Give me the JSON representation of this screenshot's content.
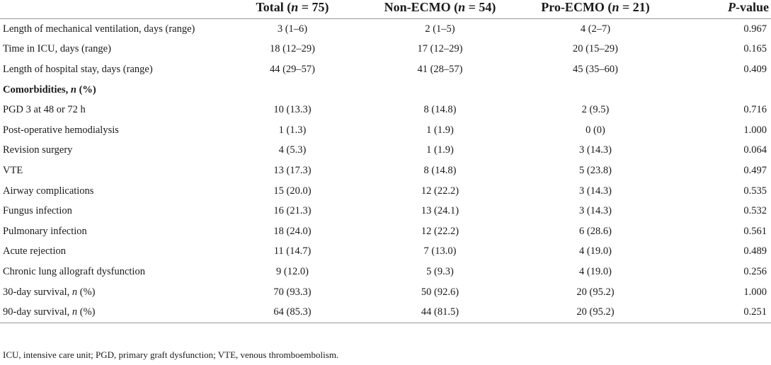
{
  "columns": {
    "total": {
      "label": "Total (",
      "n": "n",
      "rest": " = 75)"
    },
    "non_ecmo": {
      "label": "Non-ECMO (",
      "n": "n",
      "rest": " = 54)"
    },
    "pro_ecmo": {
      "label": "Pro-ECMO (",
      "n": "n",
      "rest": " = 21)"
    },
    "pvalue": {
      "p": "P",
      "rest": "-value"
    }
  },
  "rows": [
    {
      "label": "Length of mechanical ventilation, days (range)",
      "total": "3 (1–6)",
      "non_ecmo": "2 (1–5)",
      "pro_ecmo": "4 (2–7)",
      "p": "0.967"
    },
    {
      "label": "Time in ICU, days (range)",
      "total": "18 (12–29)",
      "non_ecmo": "17 (12–29)",
      "pro_ecmo": "20 (15–29)",
      "p": "0.165"
    },
    {
      "label": "Length of hospital stay, days (range)",
      "total": "44 (29–57)",
      "non_ecmo": "41 (28–57)",
      "pro_ecmo": "45 (35–60)",
      "p": "0.409"
    },
    {
      "label_a": "Comorbidities, ",
      "label_n": "n",
      "label_b": " (%)"
    },
    {
      "label": "PGD 3 at 48 or 72 h",
      "total": "10 (13.3)",
      "non_ecmo": "8 (14.8)",
      "pro_ecmo": "2 (9.5)",
      "p": "0.716"
    },
    {
      "label": "Post-operative hemodialysis",
      "total": "1 (1.3)",
      "non_ecmo": "1 (1.9)",
      "pro_ecmo": "0 (0)",
      "p": "1.000"
    },
    {
      "label": "Revision surgery",
      "total": "4 (5.3)",
      "non_ecmo": "1 (1.9)",
      "pro_ecmo": "3 (14.3)",
      "p": "0.064"
    },
    {
      "label": "VTE",
      "total": "13 (17.3)",
      "non_ecmo": "8 (14.8)",
      "pro_ecmo": "5 (23.8)",
      "p": "0.497"
    },
    {
      "label": "Airway complications",
      "total": "15 (20.0)",
      "non_ecmo": "12 (22.2)",
      "pro_ecmo": "3 (14.3)",
      "p": "0.535"
    },
    {
      "label": "Fungus infection",
      "total": "16 (21.3)",
      "non_ecmo": "13 (24.1)",
      "pro_ecmo": "3 (14.3)",
      "p": "0.532"
    },
    {
      "label": "Pulmonary infection",
      "total": "18 (24.0)",
      "non_ecmo": "12 (22.2)",
      "pro_ecmo": "6 (28.6)",
      "p": "0.561"
    },
    {
      "label": "Acute rejection",
      "total": "11 (14.7)",
      "non_ecmo": "7 (13.0)",
      "pro_ecmo": "4 (19.0)",
      "p": "0.489"
    },
    {
      "label": "Chronic lung allograft dysfunction",
      "total": "9 (12.0)",
      "non_ecmo": "5 (9.3)",
      "pro_ecmo": "4 (19.0)",
      "p": "0.256"
    },
    {
      "label_a": "30-day survival, ",
      "label_n": "n",
      "label_b": " (%)",
      "total": "70 (93.3)",
      "non_ecmo": "50 (92.6)",
      "pro_ecmo": "20 (95.2)",
      "p": "1.000"
    },
    {
      "label_a": "90-day survival, ",
      "label_n": "n",
      "label_b": " (%)",
      "total": "64 (85.3)",
      "non_ecmo": "44 (81.5)",
      "pro_ecmo": "20 (95.2)",
      "p": "0.251"
    }
  ],
  "footnote": "ICU, intensive care unit; PGD, primary graft dysfunction; VTE, venous thromboembolism."
}
